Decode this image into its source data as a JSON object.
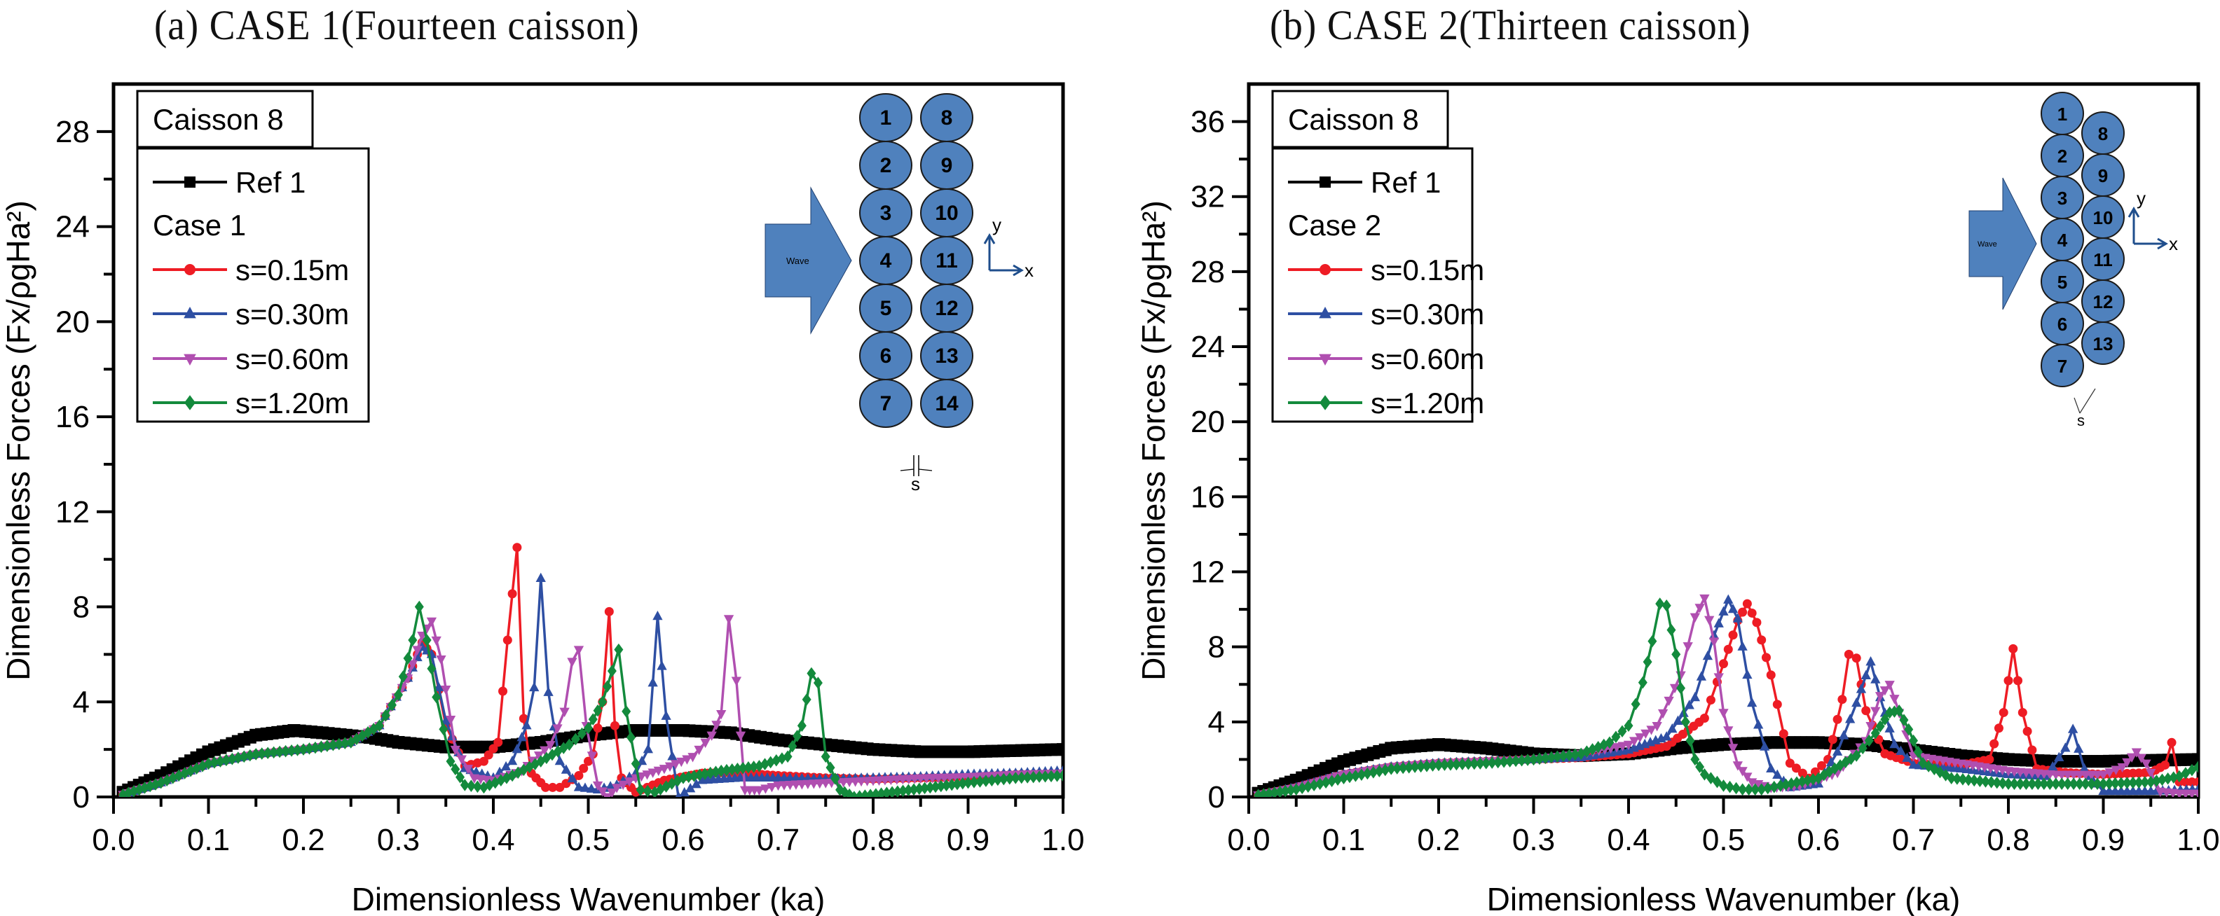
{
  "figure": {
    "panel_titles": [
      "(a) CASE 1(Fourteen caisson)",
      "(b) CASE 2(Thirteen caisson)"
    ]
  },
  "colors": {
    "ref": "#000000",
    "s015": "#ee1c24",
    "s030": "#2e4fa3",
    "s060": "#b04fb0",
    "s120": "#138a3c",
    "caisson_fill": "#4f81bd",
    "axis_arrow": "#1f4e8c"
  },
  "chart_data": [
    {
      "type": "line",
      "title": "(a) CASE 1(Fourteen caisson)",
      "xlabel": "Dimensionless Wavenumber (ka)",
      "ylabel": "Dimensionless Forces (Fx/ρgHa²)",
      "xlim": [
        0.0,
        1.0
      ],
      "ylim": [
        0,
        30
      ],
      "xticks": [
        "0.0",
        "0.1",
        "0.2",
        "0.3",
        "0.4",
        "0.5",
        "0.6",
        "0.7",
        "0.8",
        "0.9",
        "1.0"
      ],
      "yticks": [
        "0",
        "4",
        "8",
        "12",
        "16",
        "20",
        "24",
        "28"
      ],
      "grid": false,
      "legend_placement": "top-left",
      "legend_box_title": "Caisson 8",
      "legend_group_label": "Case 1",
      "diagram": {
        "wave_label": "Wave",
        "column_left": [
          "1",
          "2",
          "3",
          "4",
          "5",
          "6",
          "7"
        ],
        "column_right": [
          "8",
          "9",
          "10",
          "11",
          "12",
          "13",
          "14"
        ],
        "gap_label": "s",
        "axis_x_label": "x",
        "axis_y_label": "y",
        "arrangement": "aligned"
      },
      "series": [
        {
          "name": "Ref 1",
          "key": "ref",
          "marker": "square",
          "x": [
            0.01,
            0.05,
            0.1,
            0.15,
            0.19,
            0.22,
            0.27,
            0.3,
            0.35,
            0.4,
            0.45,
            0.5,
            0.55,
            0.6,
            0.65,
            0.7,
            0.75,
            0.8,
            0.85,
            0.9,
            0.95,
            1.0
          ],
          "y": [
            0.2,
            0.9,
            1.9,
            2.6,
            2.8,
            2.7,
            2.5,
            2.3,
            2.1,
            2.1,
            2.3,
            2.6,
            2.8,
            2.8,
            2.7,
            2.4,
            2.2,
            2.0,
            1.9,
            1.9,
            1.95,
            2.0
          ]
        },
        {
          "name": "s=0.15m",
          "key": "s015",
          "marker": "circle",
          "x": [
            0.01,
            0.05,
            0.1,
            0.15,
            0.2,
            0.25,
            0.28,
            0.31,
            0.325,
            0.335,
            0.35,
            0.37,
            0.39,
            0.405,
            0.415,
            0.425,
            0.432,
            0.44,
            0.455,
            0.47,
            0.49,
            0.505,
            0.515,
            0.522,
            0.528,
            0.535,
            0.55,
            0.58,
            0.62,
            0.66,
            0.7,
            0.75,
            0.8,
            0.85,
            0.9,
            0.95,
            1.0
          ],
          "y": [
            0.1,
            0.6,
            1.4,
            1.8,
            2.0,
            2.3,
            3.0,
            5.0,
            6.5,
            6.0,
            3.0,
            1.3,
            1.5,
            2.3,
            6.6,
            10.5,
            3.3,
            1.0,
            0.4,
            0.4,
            0.9,
            1.8,
            4.0,
            7.8,
            3.0,
            0.8,
            0.2,
            0.7,
            1.0,
            1.0,
            0.9,
            0.8,
            0.75,
            0.8,
            0.85,
            0.95,
            1.0
          ]
        },
        {
          "name": "s=0.30m",
          "key": "s030",
          "marker": "triangle-up",
          "x": [
            0.01,
            0.05,
            0.1,
            0.15,
            0.2,
            0.25,
            0.28,
            0.31,
            0.325,
            0.335,
            0.35,
            0.37,
            0.4,
            0.42,
            0.435,
            0.443,
            0.45,
            0.458,
            0.47,
            0.49,
            0.51,
            0.53,
            0.55,
            0.563,
            0.573,
            0.582,
            0.595,
            0.62,
            0.66,
            0.7,
            0.75,
            0.8,
            0.85,
            0.9,
            0.95,
            1.0
          ],
          "y": [
            0.1,
            0.6,
            1.4,
            1.8,
            2.0,
            2.3,
            3.0,
            5.0,
            6.3,
            6.0,
            3.2,
            1.2,
            0.8,
            1.5,
            3.0,
            4.6,
            9.2,
            4.4,
            1.5,
            0.4,
            0.3,
            0.5,
            1.0,
            2.0,
            7.6,
            3.4,
            0.0,
            0.7,
            0.8,
            0.8,
            0.75,
            0.8,
            0.85,
            0.95,
            1.0,
            1.1
          ]
        },
        {
          "name": "s=0.60m",
          "key": "s060",
          "marker": "triangle-down",
          "x": [
            0.01,
            0.05,
            0.1,
            0.15,
            0.2,
            0.25,
            0.28,
            0.31,
            0.325,
            0.335,
            0.345,
            0.36,
            0.38,
            0.4,
            0.43,
            0.46,
            0.475,
            0.483,
            0.49,
            0.498,
            0.51,
            0.52,
            0.53,
            0.55,
            0.58,
            0.61,
            0.63,
            0.64,
            0.648,
            0.656,
            0.665,
            0.68,
            0.7,
            0.75,
            0.8,
            0.85,
            0.9,
            0.95,
            1.0
          ],
          "y": [
            0.1,
            0.6,
            1.4,
            1.8,
            2.0,
            2.3,
            3.0,
            5.0,
            6.8,
            7.4,
            5.8,
            2.0,
            0.8,
            0.7,
            1.1,
            2.2,
            3.6,
            5.7,
            6.2,
            3.0,
            0.5,
            0.0,
            0.4,
            0.8,
            1.2,
            1.7,
            2.6,
            3.5,
            7.5,
            4.9,
            0.3,
            0.3,
            0.5,
            0.6,
            0.7,
            0.8,
            0.85,
            0.95,
            1.0
          ]
        },
        {
          "name": "s=1.20m",
          "key": "s120",
          "marker": "diamond",
          "x": [
            0.01,
            0.05,
            0.1,
            0.15,
            0.2,
            0.25,
            0.28,
            0.3,
            0.315,
            0.322,
            0.33,
            0.34,
            0.355,
            0.37,
            0.39,
            0.42,
            0.45,
            0.48,
            0.5,
            0.515,
            0.525,
            0.532,
            0.54,
            0.555,
            0.57,
            0.6,
            0.64,
            0.68,
            0.71,
            0.725,
            0.735,
            0.742,
            0.75,
            0.765,
            0.78,
            0.82,
            0.86,
            0.9,
            0.95,
            1.0
          ],
          "y": [
            0.1,
            0.6,
            1.4,
            1.8,
            2.0,
            2.3,
            3.0,
            4.3,
            6.6,
            8.0,
            6.6,
            4.2,
            1.5,
            0.5,
            0.4,
            0.9,
            1.5,
            2.2,
            2.9,
            4.0,
            5.3,
            6.2,
            3.6,
            0.3,
            0.2,
            0.8,
            1.1,
            1.3,
            1.7,
            3.0,
            5.2,
            4.8,
            1.7,
            0.3,
            0.0,
            0.2,
            0.4,
            0.6,
            0.8,
            0.9
          ]
        }
      ]
    },
    {
      "type": "line",
      "title": "(b) CASE 2(Thirteen caisson)",
      "xlabel": "Dimensionless Wavenumber (ka)",
      "ylabel": "Dimensionless Forces (Fx/ρgHa²)",
      "xlim": [
        0.0,
        1.0
      ],
      "ylim": [
        0,
        38
      ],
      "xticks": [
        "0.0",
        "0.1",
        "0.2",
        "0.3",
        "0.4",
        "0.5",
        "0.6",
        "0.7",
        "0.8",
        "0.9",
        "1.0"
      ],
      "yticks": [
        "0",
        "4",
        "8",
        "12",
        "16",
        "20",
        "24",
        "28",
        "32",
        "36"
      ],
      "grid": false,
      "legend_placement": "top-left",
      "legend_box_title": "Caisson 8",
      "legend_group_label": "Case 2",
      "diagram": {
        "wave_label": "Wave",
        "column_left": [
          "1",
          "2",
          "3",
          "4",
          "5",
          "6",
          "7"
        ],
        "column_right": [
          "8",
          "9",
          "10",
          "11",
          "12",
          "13"
        ],
        "gap_label": "s",
        "axis_x_label": "x",
        "axis_y_label": "y",
        "arrangement": "staggered"
      },
      "series": [
        {
          "name": "Ref 1",
          "key": "ref",
          "marker": "square",
          "x": [
            0.01,
            0.05,
            0.1,
            0.15,
            0.2,
            0.25,
            0.3,
            0.35,
            0.4,
            0.45,
            0.5,
            0.55,
            0.6,
            0.65,
            0.7,
            0.75,
            0.8,
            0.85,
            0.9,
            0.95,
            1.0
          ],
          "y": [
            0.2,
            0.9,
            1.9,
            2.6,
            2.8,
            2.6,
            2.3,
            2.2,
            2.3,
            2.6,
            2.8,
            2.9,
            2.9,
            2.8,
            2.5,
            2.2,
            2.0,
            1.9,
            1.9,
            1.95,
            2.0
          ]
        },
        {
          "name": "s=0.15m",
          "key": "s015",
          "marker": "circle",
          "x": [
            0.01,
            0.05,
            0.1,
            0.15,
            0.2,
            0.25,
            0.3,
            0.35,
            0.4,
            0.44,
            0.48,
            0.5,
            0.515,
            0.525,
            0.535,
            0.55,
            0.57,
            0.59,
            0.61,
            0.625,
            0.632,
            0.64,
            0.65,
            0.67,
            0.7,
            0.75,
            0.78,
            0.795,
            0.805,
            0.815,
            0.83,
            0.86,
            0.9,
            0.95,
            0.965,
            0.972,
            0.98,
            1.0
          ],
          "y": [
            0.1,
            0.5,
            1.2,
            1.6,
            1.8,
            1.9,
            2.0,
            2.1,
            2.3,
            2.7,
            4.2,
            7.1,
            9.4,
            10.3,
            9.3,
            6.5,
            1.8,
            1.0,
            2.0,
            5.2,
            7.6,
            7.4,
            4.6,
            2.3,
            1.8,
            1.7,
            2.0,
            4.5,
            7.9,
            4.5,
            1.5,
            1.3,
            1.2,
            1.3,
            1.7,
            2.9,
            0.8,
            0.8
          ]
        },
        {
          "name": "s=0.30m",
          "key": "s030",
          "marker": "triangle-up",
          "x": [
            0.01,
            0.05,
            0.1,
            0.15,
            0.2,
            0.25,
            0.3,
            0.35,
            0.4,
            0.44,
            0.47,
            0.49,
            0.505,
            0.515,
            0.53,
            0.55,
            0.57,
            0.6,
            0.62,
            0.64,
            0.655,
            0.665,
            0.68,
            0.7,
            0.75,
            0.8,
            0.84,
            0.86,
            0.868,
            0.88,
            0.9,
            0.95,
            1.0
          ],
          "y": [
            0.1,
            0.5,
            1.2,
            1.6,
            1.8,
            1.9,
            2.0,
            2.1,
            2.5,
            3.2,
            5.3,
            8.6,
            10.5,
            9.5,
            5.0,
            1.5,
            0.5,
            0.7,
            2.4,
            5.0,
            7.2,
            5.3,
            2.8,
            1.7,
            1.5,
            1.2,
            1.1,
            2.6,
            3.6,
            1.5,
            0.3,
            0.3,
            0.4
          ]
        },
        {
          "name": "s=0.60m",
          "key": "s060",
          "marker": "triangle-down",
          "x": [
            0.01,
            0.05,
            0.1,
            0.15,
            0.2,
            0.25,
            0.3,
            0.35,
            0.4,
            0.43,
            0.455,
            0.47,
            0.48,
            0.49,
            0.5,
            0.515,
            0.53,
            0.55,
            0.58,
            0.62,
            0.65,
            0.665,
            0.675,
            0.685,
            0.7,
            0.75,
            0.8,
            0.85,
            0.9,
            0.92,
            0.935,
            0.945,
            0.96,
            0.98,
            1.0
          ],
          "y": [
            0.1,
            0.5,
            1.2,
            1.6,
            1.8,
            1.9,
            2.0,
            2.3,
            2.8,
            3.8,
            6.5,
            9.6,
            10.6,
            8.3,
            4.5,
            1.7,
            0.8,
            0.5,
            0.6,
            1.3,
            3.0,
            5.4,
            6.0,
            4.5,
            2.2,
            1.8,
            1.4,
            1.2,
            1.2,
            1.6,
            2.4,
            1.8,
            0.3,
            0.2,
            0.2
          ]
        },
        {
          "name": "s=1.20m",
          "key": "s120",
          "marker": "diamond",
          "x": [
            0.01,
            0.05,
            0.1,
            0.15,
            0.2,
            0.25,
            0.3,
            0.35,
            0.38,
            0.4,
            0.415,
            0.425,
            0.433,
            0.44,
            0.45,
            0.46,
            0.47,
            0.48,
            0.5,
            0.52,
            0.54,
            0.56,
            0.6,
            0.64,
            0.66,
            0.675,
            0.685,
            0.695,
            0.71,
            0.74,
            0.8,
            0.85,
            0.9,
            0.95,
            0.98,
            1.0
          ],
          "y": [
            0.1,
            0.4,
            1.0,
            1.5,
            1.7,
            1.8,
            2.0,
            2.3,
            2.9,
            3.8,
            6.1,
            8.3,
            10.3,
            10.2,
            7.6,
            4.0,
            2.0,
            1.2,
            0.6,
            0.4,
            0.4,
            0.6,
            1.0,
            2.2,
            3.4,
            4.5,
            4.6,
            3.6,
            1.8,
            1.0,
            0.7,
            0.7,
            0.7,
            0.8,
            1.1,
            1.6
          ]
        }
      ]
    }
  ]
}
